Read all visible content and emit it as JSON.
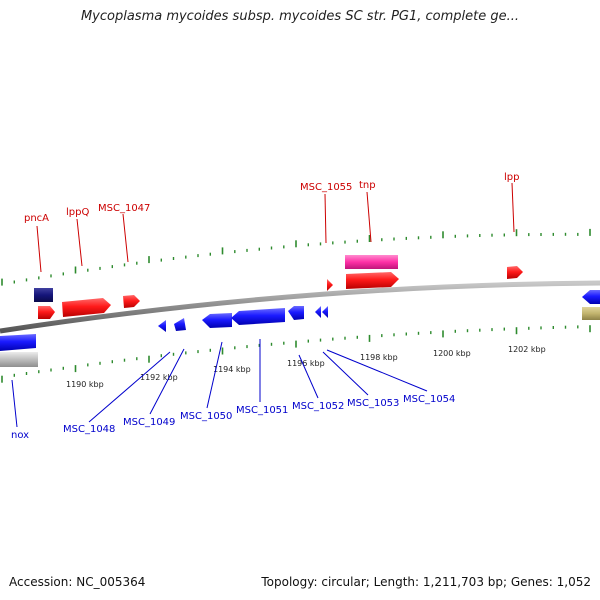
{
  "title": "Mycoplasma mycoides subsp. mycoides SC str. PG1, complete ge...",
  "footer": {
    "accession": "Accession: NC_005364",
    "summary": "Topology: circular; Length: 1,211,703 bp; Genes: 1,052"
  },
  "scale_labels": [
    "1190 kbp",
    "1192 kbp",
    "1194 kbp",
    "1196 kbp",
    "1198 kbp",
    "1200 kbp",
    "1202 kbp"
  ],
  "forward_labels": [
    "pncA",
    "lppQ",
    "MSC_1047",
    "MSC_1055",
    "tnp",
    "lpp"
  ],
  "reverse_labels": [
    "nox",
    "MSC_1048",
    "MSC_1049",
    "MSC_1050",
    "MSC_1051",
    "MSC_1052",
    "MSC_1053",
    "MSC_1054"
  ],
  "colors": {
    "backbone": "#8a8a8a",
    "forward_gene": "#ff1a1a",
    "reverse_gene": "#1a1aff",
    "forward_label": "#cc0000",
    "reverse_label": "#0000cc",
    "tick": "#2e8b2e",
    "navy_feature": "#15157a",
    "pink_feature": "#ff2fa6",
    "gray_feature": "#bdbdbd",
    "olive_feature": "#c2b46e"
  }
}
